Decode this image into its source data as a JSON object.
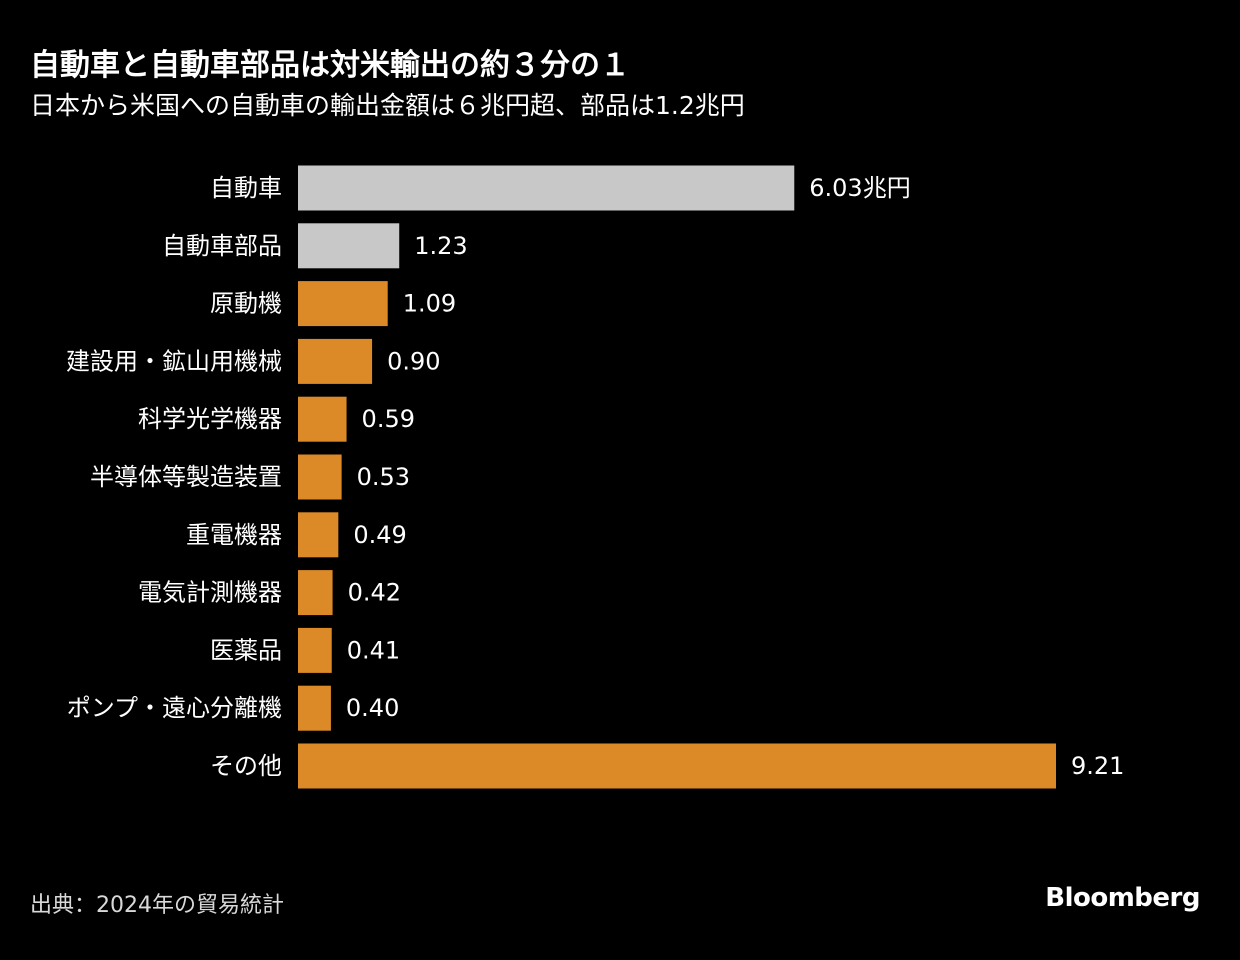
{
  "header": {
    "title": "自動車と自動車部品は対米輸出の約３分の１",
    "subtitle": "日本から米国への自動車の輸出金額は６兆円超、部品は1.2兆円"
  },
  "footer": {
    "source": "出典：2024年の貿易統計",
    "brand": "Bloomberg"
  },
  "colors": {
    "background": "#000000",
    "highlight_bar": "#c8c8c8",
    "default_bar": "#dc8a28",
    "text": "#ffffff"
  },
  "chart_data": {
    "type": "bar",
    "orientation": "horizontal",
    "title": "自動車と自動車部品は対米輸出の約３分の１",
    "subtitle": "日本から米国への自動車の輸出金額は６兆円超、部品は1.2兆円",
    "unit": "兆円",
    "categories": [
      "自動車",
      "自動車部品",
      "原動機",
      "建設用・鉱山用機械",
      "科学光学機器",
      "半導体等製造装置",
      "重電機器",
      "電気計測機器",
      "医薬品",
      "ポンプ・遠心分離機",
      "その他"
    ],
    "values": [
      6.03,
      1.23,
      1.09,
      0.9,
      0.59,
      0.53,
      0.49,
      0.42,
      0.41,
      0.4,
      9.21
    ],
    "value_labels": [
      "6.03兆円",
      "1.23",
      "1.09",
      "0.90",
      "0.59",
      "0.53",
      "0.49",
      "0.42",
      "0.41",
      "0.40",
      "9.21"
    ],
    "highlighted": [
      true,
      true,
      false,
      false,
      false,
      false,
      false,
      false,
      false,
      false,
      false
    ],
    "xlim": [
      0,
      9.21
    ],
    "grid": false,
    "legend": "none"
  }
}
